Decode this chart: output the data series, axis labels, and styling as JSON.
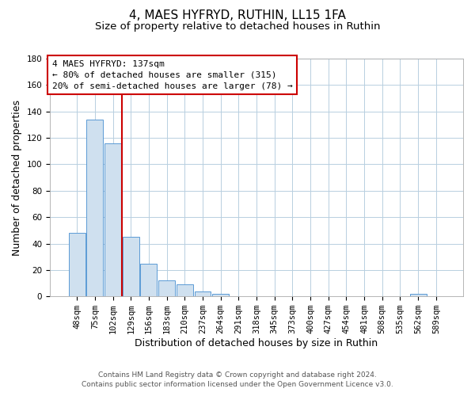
{
  "title": "4, MAES HYFRYD, RUTHIN, LL15 1FA",
  "subtitle": "Size of property relative to detached houses in Ruthin",
  "xlabel": "Distribution of detached houses by size in Ruthin",
  "ylabel": "Number of detached properties",
  "categories": [
    "48sqm",
    "75sqm",
    "102sqm",
    "129sqm",
    "156sqm",
    "183sqm",
    "210sqm",
    "237sqm",
    "264sqm",
    "291sqm",
    "318sqm",
    "345sqm",
    "373sqm",
    "400sqm",
    "427sqm",
    "454sqm",
    "481sqm",
    "508sqm",
    "535sqm",
    "562sqm",
    "589sqm"
  ],
  "values": [
    48,
    134,
    116,
    45,
    25,
    12,
    9,
    4,
    2,
    0,
    0,
    0,
    0,
    0,
    0,
    0,
    0,
    0,
    0,
    2,
    0
  ],
  "bar_color": "#cfe0ef",
  "bar_edge_color": "#5b9bd5",
  "vline_x": 2.5,
  "vline_color": "#cc0000",
  "annotation_title": "4 MAES HYFRYD: 137sqm",
  "annotation_line1": "← 80% of detached houses are smaller (315)",
  "annotation_line2": "20% of semi-detached houses are larger (78) →",
  "ylim": [
    0,
    180
  ],
  "yticks": [
    0,
    20,
    40,
    60,
    80,
    100,
    120,
    140,
    160,
    180
  ],
  "footer_line1": "Contains HM Land Registry data © Crown copyright and database right 2024.",
  "footer_line2": "Contains public sector information licensed under the Open Government Licence v3.0.",
  "background_color": "#ffffff",
  "plot_bg_color": "#ffffff",
  "grid_color": "#b8cfe0",
  "title_fontsize": 11,
  "subtitle_fontsize": 9.5,
  "axis_label_fontsize": 9,
  "tick_fontsize": 7.5,
  "annotation_fontsize": 8,
  "footer_fontsize": 6.5
}
